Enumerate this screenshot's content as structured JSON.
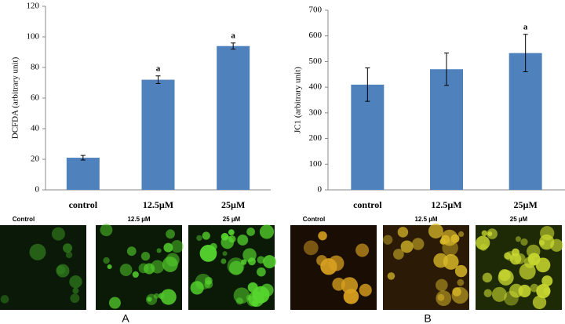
{
  "chart_data": [
    {
      "type": "bar",
      "panel_label": "A",
      "ylabel": "DCFDA (arbitrary unit)",
      "categories": [
        "control",
        "12.5µM",
        "25µM"
      ],
      "values": [
        21,
        72,
        94
      ],
      "errors": [
        1.5,
        2.5,
        2
      ],
      "value_annotations": [
        null,
        "a",
        "a"
      ],
      "color": "#4f81bd",
      "ylim": [
        0,
        120
      ],
      "yticks": [
        0,
        20,
        40,
        60,
        80,
        100,
        120
      ],
      "image_labels": [
        "Control",
        "12.5 µM",
        "25 µM"
      ]
    },
    {
      "type": "bar",
      "panel_label": "B",
      "ylabel": "JC1 (arbitrary unit)",
      "categories": [
        "control",
        "12.5µM",
        "25µM"
      ],
      "values": [
        410,
        470,
        533
      ],
      "errors": [
        65,
        63,
        73
      ],
      "value_annotations": [
        null,
        null,
        "a"
      ],
      "color": "#4f81bd",
      "ylim": [
        0,
        700
      ],
      "yticks": [
        0,
        100,
        200,
        300,
        400,
        500,
        600,
        700
      ],
      "image_labels": [
        "Control",
        "12.5 µM",
        "25 µM"
      ]
    }
  ]
}
